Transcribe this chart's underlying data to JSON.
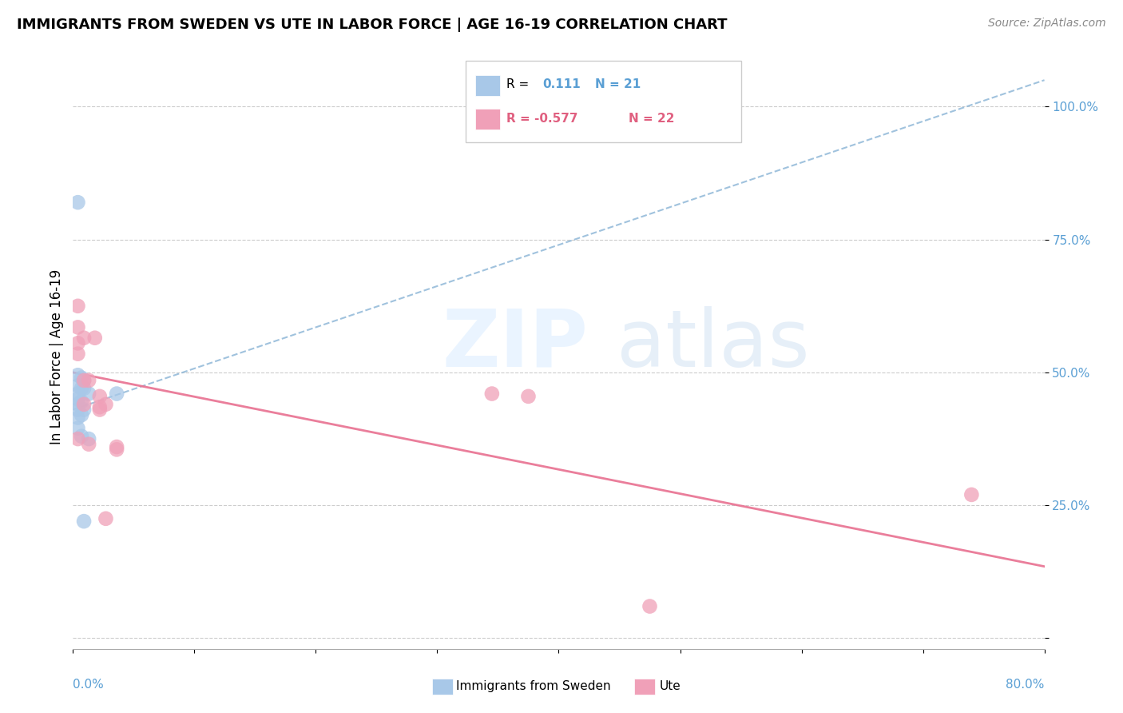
{
  "title": "IMMIGRANTS FROM SWEDEN VS UTE IN LABOR FORCE | AGE 16-19 CORRELATION CHART",
  "source": "Source: ZipAtlas.com",
  "ylabel": "In Labor Force | Age 16-19",
  "xlim": [
    0.0,
    0.8
  ],
  "ylim": [
    -0.02,
    1.08
  ],
  "blue_color": "#a8c8e8",
  "pink_color": "#f0a0b8",
  "blue_line_color": "#90b8d8",
  "pink_line_color": "#e87090",
  "blue_scatter_x": [
    0.004,
    0.004,
    0.004,
    0.004,
    0.004,
    0.004,
    0.004,
    0.004,
    0.004,
    0.007,
    0.007,
    0.007,
    0.007,
    0.007,
    0.009,
    0.009,
    0.009,
    0.009,
    0.013,
    0.013,
    0.036
  ],
  "blue_scatter_y": [
    0.82,
    0.495,
    0.475,
    0.46,
    0.45,
    0.44,
    0.43,
    0.415,
    0.395,
    0.49,
    0.47,
    0.445,
    0.42,
    0.38,
    0.485,
    0.47,
    0.43,
    0.22,
    0.46,
    0.375,
    0.46
  ],
  "pink_scatter_x": [
    0.004,
    0.004,
    0.004,
    0.004,
    0.004,
    0.009,
    0.009,
    0.009,
    0.013,
    0.013,
    0.018,
    0.022,
    0.022,
    0.022,
    0.027,
    0.027,
    0.036,
    0.036,
    0.345,
    0.375,
    0.74,
    0.475
  ],
  "pink_scatter_y": [
    0.625,
    0.585,
    0.555,
    0.535,
    0.375,
    0.565,
    0.485,
    0.44,
    0.485,
    0.365,
    0.565,
    0.455,
    0.435,
    0.43,
    0.44,
    0.225,
    0.36,
    0.355,
    0.46,
    0.455,
    0.27,
    0.06
  ],
  "blue_trend_x0": 0.0,
  "blue_trend_y0": 0.43,
  "blue_trend_x1": 0.8,
  "blue_trend_y1": 1.05,
  "pink_trend_x0": 0.0,
  "pink_trend_y0": 0.5,
  "pink_trend_x1": 0.8,
  "pink_trend_y1": 0.135
}
